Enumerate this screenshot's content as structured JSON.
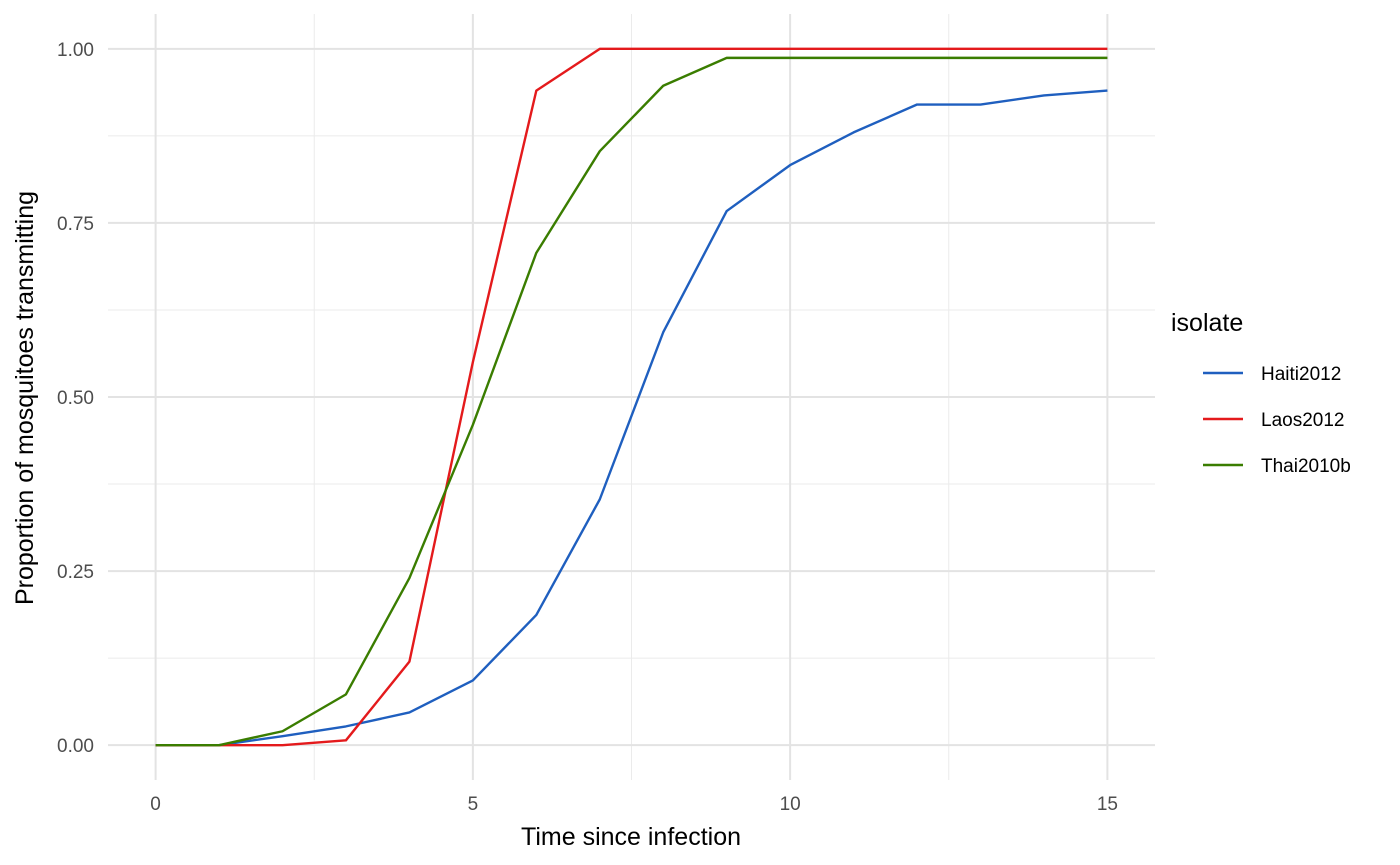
{
  "chart_data": {
    "type": "line",
    "title": "",
    "xlabel": "Time since infection",
    "ylabel": "Proportion of mosquitoes transmitting",
    "xlim": [
      -0.75,
      15.75
    ],
    "ylim": [
      -0.05,
      1.05
    ],
    "x_ticks": [
      0,
      5,
      10,
      15
    ],
    "x_tick_labels": [
      "0",
      "5",
      "10",
      "15"
    ],
    "y_ticks": [
      0,
      0.25,
      0.5,
      0.75,
      1.0
    ],
    "y_tick_labels": [
      "0.00",
      "0.25",
      "0.50",
      "0.75",
      "1.00"
    ],
    "grid": true,
    "legend": {
      "title": "isolate",
      "placement": "right"
    },
    "x": [
      0,
      1,
      2,
      3,
      4,
      5,
      6,
      7,
      8,
      9,
      10,
      11,
      12,
      13,
      14,
      15
    ],
    "series": [
      {
        "name": "Haiti2012",
        "color": "#1f5fbf",
        "values": [
          0,
          0,
          0.013,
          0.027,
          0.047,
          0.093,
          0.187,
          0.353,
          0.593,
          0.767,
          0.833,
          0.88,
          0.92,
          0.92,
          0.933,
          0.94
        ]
      },
      {
        "name": "Laos2012",
        "color": "#e41a1c",
        "values": [
          0,
          0,
          0,
          0.007,
          0.12,
          0.55,
          0.94,
          1.0,
          1.0,
          1.0,
          1.0,
          1.0,
          1.0,
          1.0,
          1.0,
          1.0
        ]
      },
      {
        "name": "Thai2010b",
        "color": "#3a7d00",
        "values": [
          0,
          0,
          0.02,
          0.073,
          0.24,
          0.46,
          0.707,
          0.853,
          0.947,
          0.987,
          0.987,
          0.987,
          0.987,
          0.987,
          0.987,
          0.987
        ]
      }
    ]
  }
}
